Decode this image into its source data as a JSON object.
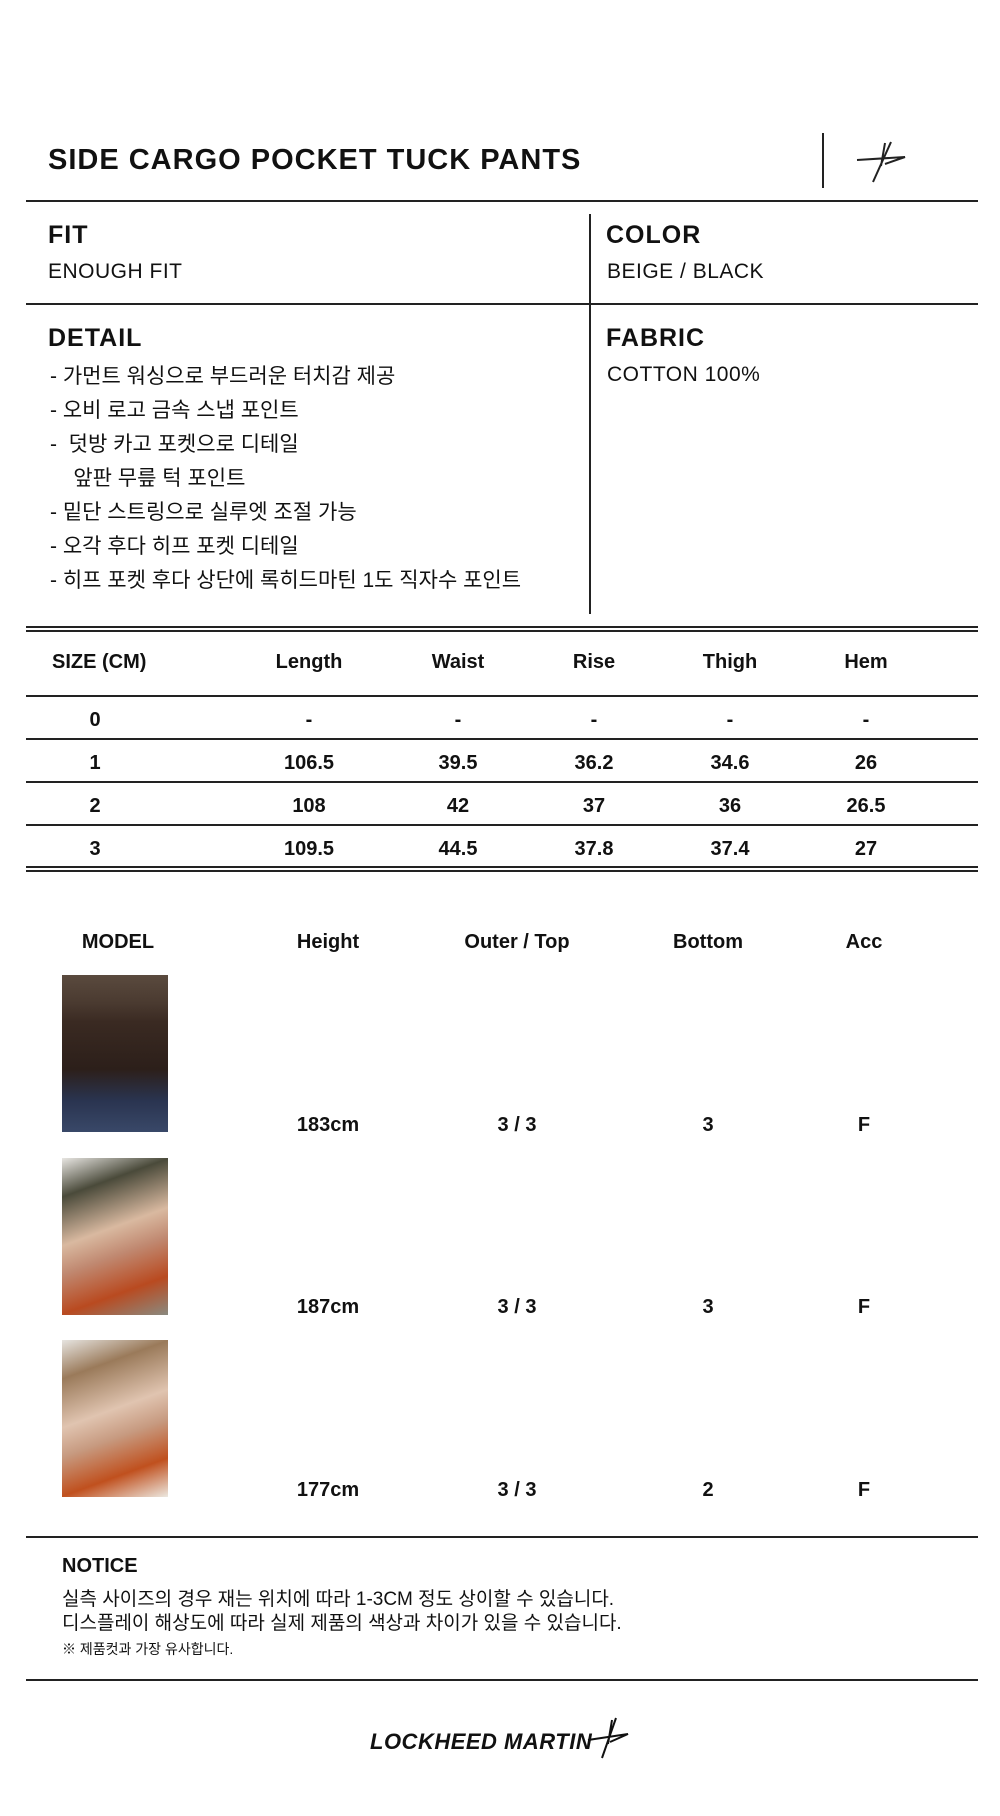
{
  "product": {
    "title": "SIDE CARGO POCKET TUCK PANTS"
  },
  "brand": {
    "name": "LOCKHEED MARTIN",
    "logo_icon": "star-logo-icon"
  },
  "fit": {
    "label": "FIT",
    "value": "ENOUGH FIT"
  },
  "color": {
    "label": "COLOR",
    "value": "BEIGE / BLACK"
  },
  "fabric": {
    "label": "FABRIC",
    "value": "COTTON 100%"
  },
  "detail": {
    "label": "DETAIL",
    "items": [
      "-  가먼트 워싱으로 부드러운 터치감 제공",
      "-  오비 로고 금속 스냅 포인트",
      "-  덧방 카고 포켓으로 디테일",
      "    앞판 무릎 턱 포인트",
      "-  밑단 스트링으로 실루엣 조절 가능",
      "-  오각 후다 히프 포켓 디테일",
      "-  히프 포켓 후다 상단에 록히드마틴 1도 직자수 포인트"
    ]
  },
  "size_table": {
    "headers": [
      "SIZE (CM)",
      "Length",
      "Waist",
      "Rise",
      "Thigh",
      "Hem"
    ],
    "rows": [
      [
        "0",
        "-",
        "-",
        "-",
        "-",
        "-"
      ],
      [
        "1",
        "106.5",
        "39.5",
        "36.2",
        "34.6",
        "26"
      ],
      [
        "2",
        "108",
        "42",
        "37",
        "36",
        "26.5"
      ],
      [
        "3",
        "109.5",
        "44.5",
        "37.8",
        "37.4",
        "27"
      ]
    ]
  },
  "model_table": {
    "headers": [
      "MODEL",
      "Height",
      "Outer / Top",
      "Bottom",
      "Acc"
    ],
    "rows": [
      [
        "183cm",
        "3 / 3",
        "3",
        "F"
      ],
      [
        "187cm",
        "3 / 3",
        "3",
        "F"
      ],
      [
        "177cm",
        "3 / 3",
        "2",
        "F"
      ]
    ]
  },
  "notice": {
    "label": "NOTICE",
    "lines": [
      "실측 사이즈의 경우 재는 위치에 따라 1-3CM 정도 상이할 수 있습니다.",
      "디스플레이 해상도에 따라 실제 제품의 색상과 차이가 있을 수 있습니다."
    ],
    "note": "※ 제품컷과 가장 유사합니다."
  }
}
